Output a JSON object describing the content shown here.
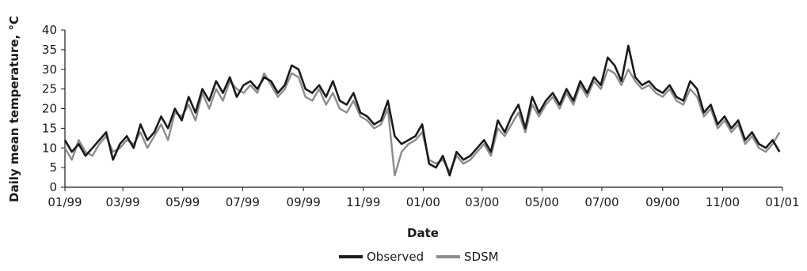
{
  "chart_data": {
    "type": "line",
    "title": "",
    "xlabel": "Date",
    "ylabel": "Daily mean temperature, °C",
    "ylim": [
      0,
      40
    ],
    "yticks": [
      0,
      5,
      10,
      15,
      20,
      25,
      30,
      35,
      40
    ],
    "xlim": [
      "1999-01-01",
      "2001-01-01"
    ],
    "xticks": [
      {
        "date": "1999-01-01",
        "label": "01/99"
      },
      {
        "date": "1999-03-01",
        "label": "03/99"
      },
      {
        "date": "1999-05-01",
        "label": "05/99"
      },
      {
        "date": "1999-07-01",
        "label": "07/99"
      },
      {
        "date": "1999-09-01",
        "label": "09/99"
      },
      {
        "date": "1999-11-01",
        "label": "11/99"
      },
      {
        "date": "2000-01-01",
        "label": "01/00"
      },
      {
        "date": "2000-03-01",
        "label": "03/00"
      },
      {
        "date": "2000-05-01",
        "label": "05/00"
      },
      {
        "date": "2000-07-01",
        "label": "07/00"
      },
      {
        "date": "2000-09-01",
        "label": "09/00"
      },
      {
        "date": "2000-11-01",
        "label": "11/00"
      },
      {
        "date": "2001-01-01",
        "label": "01/01"
      }
    ],
    "grid": false,
    "legend_position": "bottom-center",
    "series": [
      {
        "name": "Observed",
        "color": "#1a1a1a",
        "x": [
          "1999-01-01",
          "1999-01-08",
          "1999-01-15",
          "1999-01-22",
          "1999-01-29",
          "1999-02-05",
          "1999-02-12",
          "1999-02-19",
          "1999-02-26",
          "1999-03-05",
          "1999-03-12",
          "1999-03-19",
          "1999-03-26",
          "1999-04-02",
          "1999-04-09",
          "1999-04-16",
          "1999-04-23",
          "1999-04-30",
          "1999-05-07",
          "1999-05-14",
          "1999-05-21",
          "1999-05-28",
          "1999-06-04",
          "1999-06-11",
          "1999-06-18",
          "1999-06-25",
          "1999-07-02",
          "1999-07-09",
          "1999-07-16",
          "1999-07-23",
          "1999-07-30",
          "1999-08-06",
          "1999-08-13",
          "1999-08-20",
          "1999-08-27",
          "1999-09-03",
          "1999-09-10",
          "1999-09-17",
          "1999-09-24",
          "1999-10-01",
          "1999-10-08",
          "1999-10-15",
          "1999-10-22",
          "1999-10-29",
          "1999-11-05",
          "1999-11-12",
          "1999-11-19",
          "1999-11-26",
          "1999-12-03",
          "1999-12-10",
          "1999-12-17",
          "1999-12-24",
          "1999-12-31",
          "2000-01-07",
          "2000-01-14",
          "2000-01-21",
          "2000-01-28",
          "2000-02-04",
          "2000-02-11",
          "2000-02-18",
          "2000-02-25",
          "2000-03-03",
          "2000-03-10",
          "2000-03-17",
          "2000-03-24",
          "2000-03-31",
          "2000-04-07",
          "2000-04-14",
          "2000-04-21",
          "2000-04-28",
          "2000-05-05",
          "2000-05-12",
          "2000-05-19",
          "2000-05-26",
          "2000-06-02",
          "2000-06-09",
          "2000-06-16",
          "2000-06-23",
          "2000-06-30",
          "2000-07-07",
          "2000-07-14",
          "2000-07-21",
          "2000-07-28",
          "2000-08-04",
          "2000-08-11",
          "2000-08-18",
          "2000-08-25",
          "2000-09-01",
          "2000-09-08",
          "2000-09-15",
          "2000-09-22",
          "2000-09-29",
          "2000-10-06",
          "2000-10-13",
          "2000-10-20",
          "2000-10-27",
          "2000-11-03",
          "2000-11-10",
          "2000-11-17",
          "2000-11-24",
          "2000-12-01",
          "2000-12-08",
          "2000-12-15",
          "2000-12-22",
          "2000-12-29"
        ],
        "values": [
          12,
          9,
          11,
          8,
          10,
          12,
          14,
          7,
          11,
          13,
          10,
          16,
          12,
          14,
          18,
          15,
          20,
          17,
          23,
          19,
          25,
          22,
          27,
          24,
          28,
          23,
          26,
          27,
          25,
          28,
          27,
          24,
          26,
          31,
          30,
          25,
          24,
          26,
          23,
          27,
          22,
          21,
          24,
          19,
          18,
          16,
          17,
          22,
          13,
          11,
          12,
          13,
          16,
          6,
          5,
          8,
          3,
          9,
          7,
          8,
          10,
          12,
          9,
          17,
          14,
          18,
          21,
          15,
          23,
          19,
          22,
          24,
          21,
          25,
          22,
          27,
          24,
          28,
          26,
          33,
          31,
          27,
          36,
          28,
          26,
          27,
          25,
          24,
          26,
          23,
          22,
          27,
          25,
          19,
          21,
          16,
          18,
          15,
          17,
          12,
          14,
          11,
          10,
          12,
          9
        ]
      },
      {
        "name": "SDSM",
        "color": "#8c8c8c",
        "x": [
          "1999-01-01",
          "1999-01-08",
          "1999-01-15",
          "1999-01-22",
          "1999-01-29",
          "1999-02-05",
          "1999-02-12",
          "1999-02-19",
          "1999-02-26",
          "1999-03-05",
          "1999-03-12",
          "1999-03-19",
          "1999-03-26",
          "1999-04-02",
          "1999-04-09",
          "1999-04-16",
          "1999-04-23",
          "1999-04-30",
          "1999-05-07",
          "1999-05-14",
          "1999-05-21",
          "1999-05-28",
          "1999-06-04",
          "1999-06-11",
          "1999-06-18",
          "1999-06-25",
          "1999-07-02",
          "1999-07-09",
          "1999-07-16",
          "1999-07-23",
          "1999-07-30",
          "1999-08-06",
          "1999-08-13",
          "1999-08-20",
          "1999-08-27",
          "1999-09-03",
          "1999-09-10",
          "1999-09-17",
          "1999-09-24",
          "1999-10-01",
          "1999-10-08",
          "1999-10-15",
          "1999-10-22",
          "1999-10-29",
          "1999-11-05",
          "1999-11-12",
          "1999-11-19",
          "1999-11-26",
          "1999-12-03",
          "1999-12-10",
          "1999-12-17",
          "1999-12-24",
          "1999-12-31",
          "2000-01-07",
          "2000-01-14",
          "2000-01-21",
          "2000-01-28",
          "2000-02-04",
          "2000-02-11",
          "2000-02-18",
          "2000-02-25",
          "2000-03-03",
          "2000-03-10",
          "2000-03-17",
          "2000-03-24",
          "2000-03-31",
          "2000-04-07",
          "2000-04-14",
          "2000-04-21",
          "2000-04-28",
          "2000-05-05",
          "2000-05-12",
          "2000-05-19",
          "2000-05-26",
          "2000-06-02",
          "2000-06-09",
          "2000-06-16",
          "2000-06-23",
          "2000-06-30",
          "2000-07-07",
          "2000-07-14",
          "2000-07-21",
          "2000-07-28",
          "2000-08-04",
          "2000-08-11",
          "2000-08-18",
          "2000-08-25",
          "2000-09-01",
          "2000-09-08",
          "2000-09-15",
          "2000-09-22",
          "2000-09-29",
          "2000-10-06",
          "2000-10-13",
          "2000-10-20",
          "2000-10-27",
          "2000-11-03",
          "2000-11-10",
          "2000-11-17",
          "2000-11-24",
          "2000-12-01",
          "2000-12-08",
          "2000-12-15",
          "2000-12-22",
          "2000-12-29"
        ],
        "values": [
          10,
          7,
          12,
          9,
          8,
          11,
          13,
          9,
          10,
          12,
          11,
          14,
          10,
          13,
          16,
          12,
          19,
          18,
          21,
          17,
          24,
          20,
          25,
          22,
          27,
          25,
          24,
          26,
          24,
          29,
          26,
          23,
          25,
          29,
          28,
          23,
          22,
          25,
          21,
          24,
          20,
          19,
          22,
          18,
          17,
          15,
          16,
          20,
          3,
          9,
          11,
          12,
          14,
          7,
          6,
          7,
          4,
          8,
          6,
          7,
          9,
          11,
          8,
          15,
          13,
          16,
          19,
          14,
          21,
          18,
          21,
          23,
          20,
          24,
          21,
          26,
          23,
          27,
          25,
          30,
          29,
          26,
          30,
          27,
          25,
          26,
          24,
          23,
          25,
          22,
          21,
          25,
          23,
          18,
          20,
          15,
          17,
          14,
          16,
          11,
          13,
          10,
          9,
          11,
          14
        ]
      }
    ]
  }
}
